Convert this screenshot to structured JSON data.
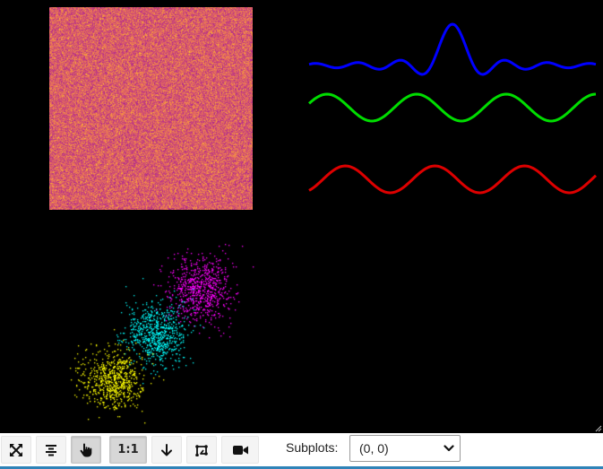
{
  "figure": {
    "background": "#000000",
    "image_panel": {
      "colormap": "plasma"
    },
    "line_panel": {
      "series": [
        {
          "color": "#0000ff",
          "shape": "sinc-pulse"
        },
        {
          "color": "#00dd00",
          "shape": "sine"
        },
        {
          "color": "#dd0000",
          "shape": "sine"
        }
      ]
    },
    "scatter_panel": {
      "clusters": [
        {
          "color": "#ff00ff"
        },
        {
          "color": "#00ffff"
        },
        {
          "color": "#ffff00"
        }
      ]
    }
  },
  "toolbar": {
    "buttons": [
      {
        "id": "fullscreen",
        "icon": "expand-arrows-icon",
        "active": false
      },
      {
        "id": "align",
        "icon": "align-center-icon",
        "active": false
      },
      {
        "id": "pan",
        "icon": "pointer-hand-icon",
        "active": true
      },
      {
        "id": "one-to-one",
        "label": "1:1",
        "active": true
      },
      {
        "id": "download",
        "icon": "arrow-down-icon",
        "active": false
      },
      {
        "id": "select",
        "icon": "lasso-select-icon",
        "active": false
      },
      {
        "id": "record",
        "icon": "video-camera-icon",
        "active": false
      }
    ],
    "one_to_one_label": "1:1",
    "subplots_label": "Subplots:",
    "subplots_value": "(0, 0)"
  },
  "accent_color": "#2f83b8"
}
